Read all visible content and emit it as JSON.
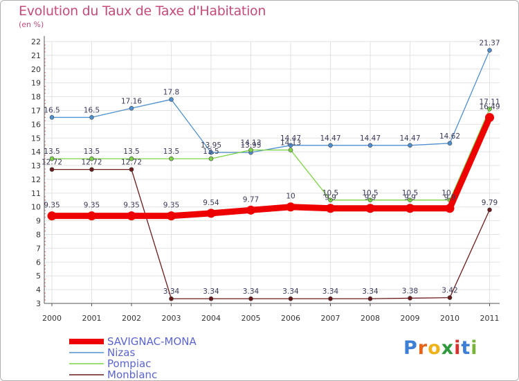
{
  "title": "Evolution du Taux de Taxe d'Habitation",
  "subtitle": "(en %)",
  "logo": {
    "letters": [
      "P",
      "r",
      "o",
      "x",
      "i",
      "t",
      "i"
    ],
    "colors": [
      "#3d7fd6",
      "#e8631a",
      "#f0b21a",
      "#2e9a3c",
      "#d8322f",
      "#3d7fd6",
      "#7ab33a"
    ]
  },
  "chart_data": {
    "type": "line",
    "title": "Evolution du Taux de Taxe d'Habitation",
    "subtitle": "(en %)",
    "xlabel": "",
    "ylabel": "",
    "x": [
      "2000",
      "2001",
      "2002",
      "2003",
      "2004",
      "2005",
      "2006",
      "2007",
      "2008",
      "2009",
      "2010",
      "2011"
    ],
    "ylim": [
      3,
      22
    ],
    "yticks": [
      "3",
      "4",
      "5",
      "6",
      "7",
      "8",
      "9",
      "10",
      "11",
      "12",
      "13",
      "14",
      "15",
      "16",
      "17",
      "18",
      "19",
      "20",
      "21",
      "22"
    ],
    "grid": true,
    "legend_position": "bottom-left",
    "series": [
      {
        "name": "Nizas",
        "color": "#4f8fcf",
        "values": [
          16.5,
          16.5,
          17.16,
          17.8,
          13.95,
          13.95,
          14.47,
          14.47,
          14.47,
          14.47,
          14.62,
          21.37
        ],
        "labels": [
          "16.5",
          "16.5",
          "17.16",
          "17.8",
          "13.95",
          "13.95",
          "14.47",
          "14.47",
          "14.47",
          "14.47",
          "14.62",
          "21.37"
        ]
      },
      {
        "name": "Pompiac",
        "color": "#7dd446",
        "values": [
          13.5,
          13.5,
          13.5,
          13.5,
          13.5,
          14.13,
          14.13,
          10.5,
          10.5,
          10.5,
          10.5,
          17.11
        ],
        "labels": [
          "13.5",
          "13.5",
          "13.5",
          "13.5",
          "13.5",
          "14.13",
          "14.13",
          "10.5",
          "10.5",
          "10.5",
          "10.5",
          "17.11"
        ]
      },
      {
        "name": "Monblanc",
        "color": "#6b1a1a",
        "values": [
          12.72,
          12.72,
          12.72,
          3.34,
          3.34,
          3.34,
          3.34,
          3.34,
          3.34,
          3.38,
          3.42,
          9.79
        ],
        "labels": [
          "12.72",
          "12.72",
          "12.72",
          "3.34",
          "3.34",
          "3.34",
          "3.34",
          "3.34",
          "3.34",
          "3.38",
          "3.42",
          "9.79"
        ]
      },
      {
        "name": "SAVIGNAC-MONA",
        "color": "#ee0000",
        "values": [
          9.35,
          9.35,
          9.35,
          9.35,
          9.54,
          9.77,
          10,
          9.9,
          9.9,
          9.9,
          9.9,
          16.49
        ],
        "labels": [
          "9.35",
          "9.35",
          "9.35",
          "9.35",
          "9.54",
          "9.77",
          "10",
          "9.9",
          "9.9",
          "9.9",
          "9.9",
          "16.49"
        ]
      }
    ],
    "legend": [
      "SAVIGNAC-MONA",
      "Nizas",
      "Pompiac",
      "Monblanc"
    ]
  }
}
